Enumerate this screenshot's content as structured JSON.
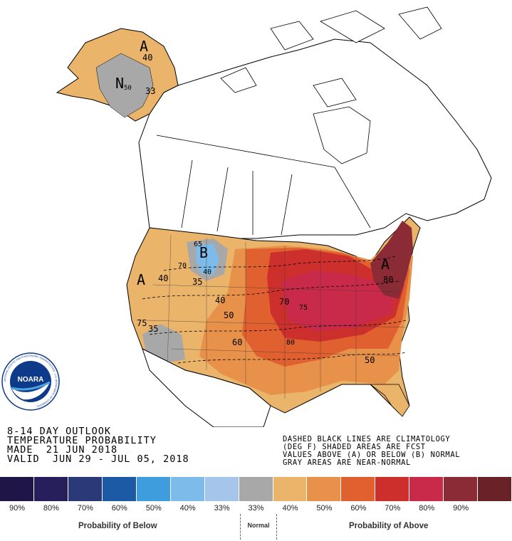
{
  "outlook_text": {
    "line1": "8-14 DAY OUTLOOK",
    "line2": "TEMPERATURE PROBABILITY",
    "line3": "MADE  21 JUN 2018",
    "line4": "VALID  JUN 29 - JUL 05, 2018"
  },
  "notes": {
    "line1": "DASHED BLACK LINES ARE CLIMATOLOGY",
    "line2": "(DEG F) SHADED AREAS ARE FCST",
    "line3": "VALUES ABOVE (A) OR BELOW (B) NORMAL",
    "line4": "GRAY AREAS ARE NEAR-NORMAL"
  },
  "logo": {
    "text": "NOARA",
    "ring_text": "NATIONAL OCEANIC AND ATMOSPHERIC ADMINISTRATION · U.S. DEPARTMENT OF COMMERCE"
  },
  "legend": {
    "swatches": [
      {
        "color": "#1f1546",
        "label": "90%"
      },
      {
        "color": "#271e5c",
        "label": "80%"
      },
      {
        "color": "#2a3a78",
        "label": "70%"
      },
      {
        "color": "#1d5aa6",
        "label": "60%"
      },
      {
        "color": "#3e9ddd",
        "label": "50%"
      },
      {
        "color": "#7dbbea",
        "label": "40%"
      },
      {
        "color": "#a5c6ea",
        "label": "33%"
      },
      {
        "color": "#a8a8a8",
        "label": "33%"
      },
      {
        "color": "#eab46a",
        "label": "40%"
      },
      {
        "color": "#e8914a",
        "label": "50%"
      },
      {
        "color": "#e06030",
        "label": "60%"
      },
      {
        "color": "#cc2f2c",
        "label": "70%"
      },
      {
        "color": "#c92a4a",
        "label": "80%"
      },
      {
        "color": "#8a2b35",
        "label": "90%"
      },
      {
        "color": "#6a2228",
        "label": ""
      }
    ],
    "below_label": "Probability of Below",
    "normal_label": "Normal",
    "above_label": "Probability of Above"
  },
  "map_labels": {
    "alaska_a": "A",
    "alaska_n": "N",
    "alaska_40": "40",
    "alaska_33": "33",
    "alaska_50": "50",
    "west_a": "A",
    "west_40": "40",
    "west_75": "75",
    "west_35": "35",
    "nw_b": "B",
    "nw_65": "65",
    "nw_70": "70",
    "nw_40": "40",
    "nw_35": "35",
    "c_40": "40",
    "c_50": "50",
    "c_60": "60",
    "c_70": "70",
    "c_75": "75",
    "c_80": "80",
    "se_50": "50",
    "ne_a": "A",
    "ne_80": "80"
  }
}
